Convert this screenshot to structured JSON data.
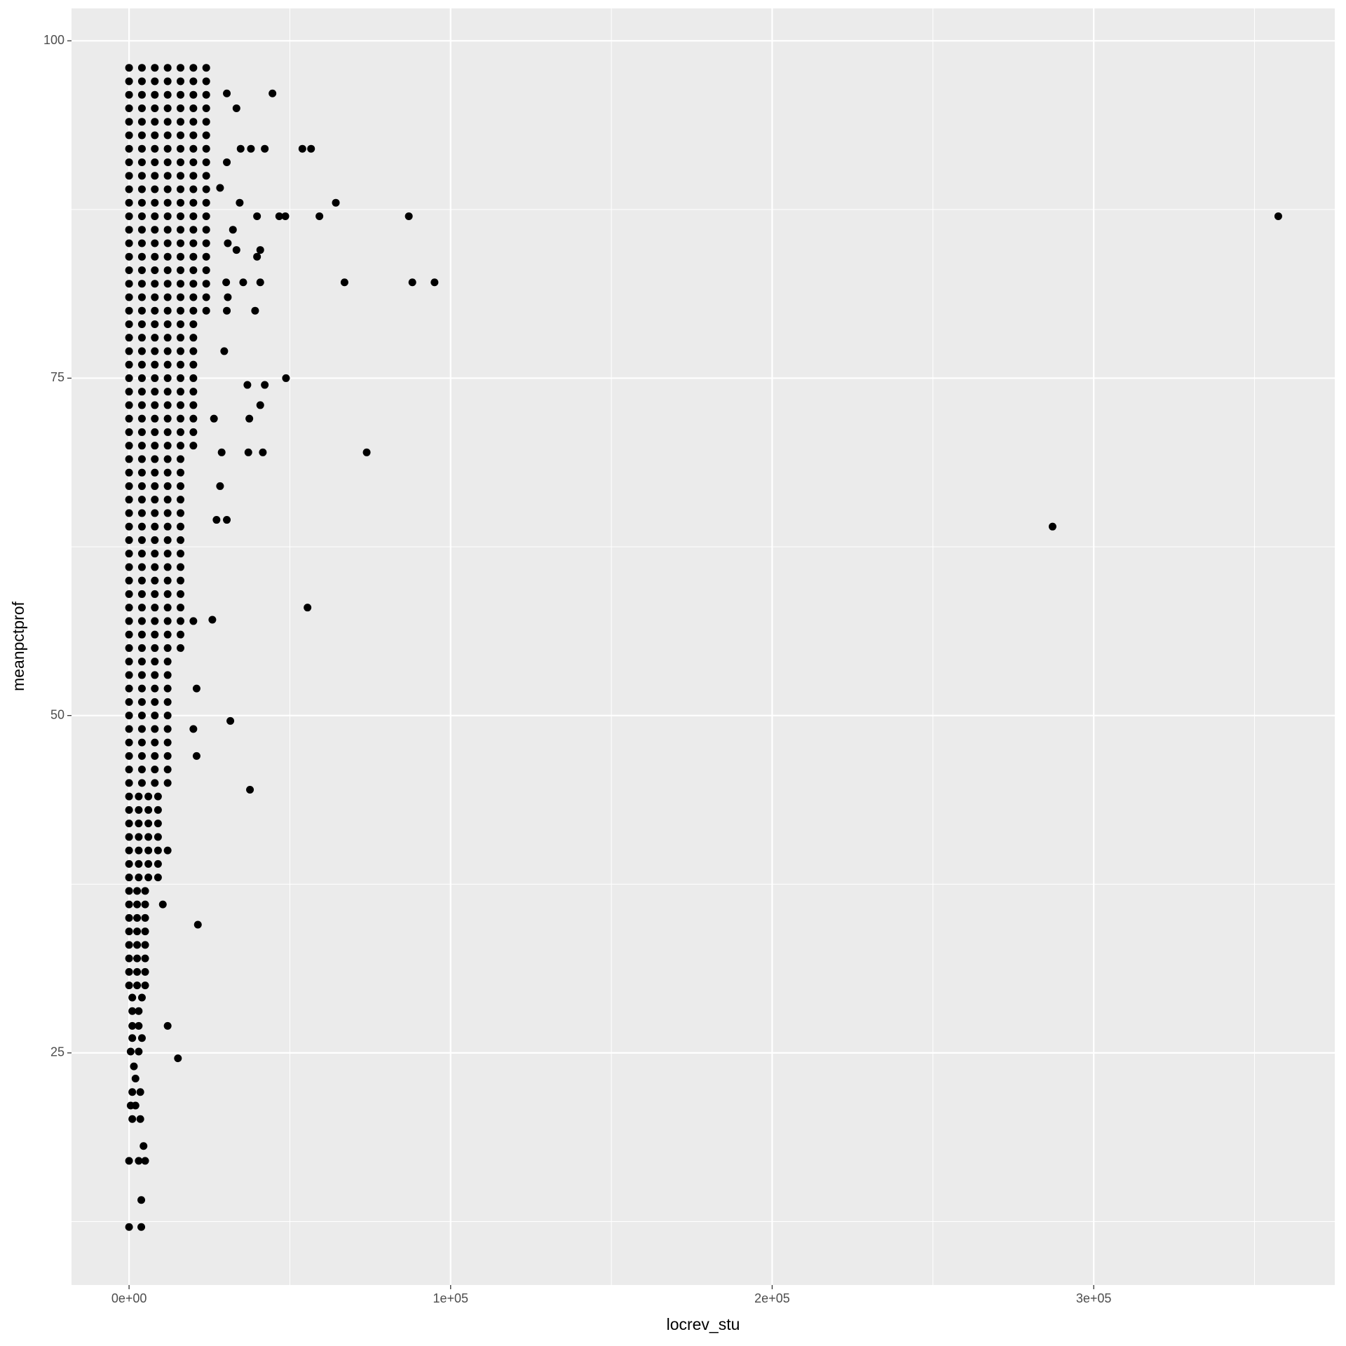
{
  "chart_data": {
    "type": "scatter",
    "x_label": "locrev_stu",
    "y_label": "meanpctprof",
    "xlim": [
      -17900,
      374970
    ],
    "ylim": [
      7.8,
      102.4
    ],
    "xticks": [
      {
        "value": 0,
        "label": "0e+00"
      },
      {
        "value": 100000,
        "label": "1e+05"
      },
      {
        "value": 200000,
        "label": "2e+05"
      },
      {
        "value": 300000,
        "label": "3e+05"
      }
    ],
    "yticks": [
      25,
      50,
      75,
      100
    ],
    "x_minor_grid": [
      50000,
      150000,
      250000,
      350000
    ],
    "y_minor_grid": [
      12.5,
      37.5,
      62.5,
      87.5
    ],
    "grid": true,
    "color": "#000000",
    "x": [
      0,
      4000,
      8000,
      12000,
      16000,
      20000,
      24000,
      0,
      4000,
      8000,
      12000,
      16000,
      20000,
      24000,
      0,
      4000,
      8000,
      12000,
      16000,
      20000,
      24000,
      0,
      4000,
      8000,
      12000,
      16000,
      20000,
      24000,
      0,
      4000,
      8000,
      12000,
      16000,
      20000,
      24000,
      0,
      4000,
      8000,
      12000,
      16000,
      20000,
      24000,
      0,
      4000,
      8000,
      12000,
      16000,
      20000,
      24000,
      0,
      4000,
      8000,
      12000,
      16000,
      20000,
      24000,
      0,
      4000,
      8000,
      12000,
      16000,
      20000,
      24000,
      0,
      4000,
      8000,
      12000,
      16000,
      20000,
      24000,
      0,
      4000,
      8000,
      12000,
      16000,
      20000,
      24000,
      0,
      4000,
      8000,
      12000,
      16000,
      20000,
      24000,
      0,
      4000,
      8000,
      12000,
      16000,
      20000,
      24000,
      0,
      4000,
      8000,
      12000,
      16000,
      20000,
      24000,
      0,
      4000,
      8000,
      12000,
      16000,
      20000,
      24000,
      0,
      4000,
      8000,
      12000,
      16000,
      20000,
      24000,
      0,
      4000,
      8000,
      12000,
      16000,
      20000,
      24000,
      0,
      4000,
      8000,
      12000,
      16000,
      20000,
      24000,
      0,
      4000,
      8000,
      12000,
      16000,
      20000,
      24000,
      0,
      4000,
      8000,
      12000,
      16000,
      20000,
      0,
      4000,
      8000,
      12000,
      16000,
      20000,
      0,
      4000,
      8000,
      12000,
      16000,
      20000,
      0,
      4000,
      8000,
      12000,
      16000,
      20000,
      0,
      4000,
      8000,
      12000,
      16000,
      20000,
      0,
      4000,
      8000,
      12000,
      16000,
      20000,
      0,
      4000,
      8000,
      12000,
      16000,
      20000,
      0,
      4000,
      8000,
      12000,
      16000,
      20000,
      0,
      4000,
      8000,
      12000,
      16000,
      20000,
      0,
      4000,
      8000,
      12000,
      16000,
      20000,
      0,
      4000,
      8000,
      12000,
      16000,
      0,
      4000,
      8000,
      12000,
      16000,
      0,
      4000,
      8000,
      12000,
      16000,
      0,
      4000,
      8000,
      12000,
      16000,
      0,
      4000,
      8000,
      12000,
      16000,
      0,
      4000,
      8000,
      12000,
      16000,
      0,
      4000,
      8000,
      12000,
      16000,
      0,
      4000,
      8000,
      12000,
      16000,
      0,
      4000,
      8000,
      12000,
      16000,
      0,
      4000,
      8000,
      12000,
      16000,
      0,
      4000,
      8000,
      12000,
      16000,
      0,
      4000,
      8000,
      12000,
      16000,
      0,
      4000,
      8000,
      12000,
      16000,
      0,
      4000,
      8000,
      12000,
      16000,
      0,
      4000,
      8000,
      12000,
      16000,
      0,
      4000,
      8000,
      12000,
      0,
      4000,
      8000,
      12000,
      0,
      4000,
      8000,
      12000,
      0,
      4000,
      8000,
      12000,
      0,
      4000,
      8000,
      12000,
      0,
      4000,
      8000,
      12000,
      0,
      4000,
      8000,
      12000,
      0,
      4000,
      8000,
      12000,
      0,
      4000,
      8000,
      12000,
      0,
      4000,
      8000,
      12000,
      0,
      3000,
      6000,
      9000,
      0,
      3000,
      6000,
      9000,
      0,
      3000,
      6000,
      9000,
      0,
      3000,
      6000,
      9000,
      0,
      3000,
      6000,
      9000,
      0,
      3000,
      6000,
      9000,
      0,
      3000,
      6000,
      9000,
      0,
      2500,
      5000,
      0,
      2500,
      5000,
      0,
      2500,
      5000,
      0,
      2500,
      5000,
      0,
      2500,
      5000,
      0,
      2500,
      5000,
      0,
      2500,
      5000,
      0,
      2500,
      5000,
      1000,
      4000,
      1000,
      3000,
      1000,
      3000,
      1000,
      4000,
      500,
      3000,
      1500,
      2000,
      1000,
      3500,
      500,
      2000,
      1000,
      3500,
      4500,
      0,
      3000,
      5000,
      3800,
      0,
      3800,
      44600,
      33400,
      30400,
      34700,
      37900,
      42200,
      53900,
      56600,
      30400,
      28300,
      34400,
      64300,
      39800,
      46700,
      48600,
      59200,
      87000,
      357400,
      32300,
      30700,
      33400,
      40800,
      39800,
      30200,
      35500,
      40800,
      67000,
      88100,
      95000,
      30700,
      30400,
      39200,
      29600,
      48800,
      36800,
      42200,
      40800,
      37400,
      26400,
      28800,
      37100,
      41600,
      73900,
      28300,
      27200,
      30400,
      287200,
      55500,
      25900,
      31500,
      37600,
      21400,
      15200,
      20000,
      21000,
      20000,
      21000,
      12000,
      10500,
      12000
    ],
    "values": [
      98,
      98,
      98,
      98,
      98,
      98,
      98,
      97,
      97,
      97,
      97,
      97,
      97,
      97,
      96,
      96,
      96,
      96,
      96,
      96,
      96,
      95,
      95,
      95,
      95,
      95,
      95,
      95,
      94,
      94,
      94,
      94,
      94,
      94,
      94,
      93,
      93,
      93,
      93,
      93,
      93,
      93,
      92,
      92,
      92,
      92,
      92,
      92,
      92,
      91,
      91,
      91,
      91,
      91,
      91,
      91,
      90,
      90,
      90,
      90,
      90,
      90,
      90,
      89,
      89,
      89,
      89,
      89,
      89,
      89,
      88,
      88,
      88,
      88,
      88,
      88,
      88,
      87,
      87,
      87,
      87,
      87,
      87,
      87,
      86,
      86,
      86,
      86,
      86,
      86,
      86,
      85,
      85,
      85,
      85,
      85,
      85,
      85,
      84,
      84,
      84,
      84,
      84,
      84,
      84,
      83,
      83,
      83,
      83,
      83,
      83,
      83,
      82,
      82,
      82,
      82,
      82,
      82,
      82,
      81,
      81,
      81,
      81,
      81,
      81,
      81,
      80,
      80,
      80,
      80,
      80,
      80,
      80,
      79,
      79,
      79,
      79,
      79,
      79,
      78,
      78,
      78,
      78,
      78,
      78,
      77,
      77,
      77,
      77,
      77,
      77,
      76,
      76,
      76,
      76,
      76,
      76,
      75,
      75,
      75,
      75,
      75,
      75,
      74,
      74,
      74,
      74,
      74,
      74,
      73,
      73,
      73,
      73,
      73,
      73,
      72,
      72,
      72,
      72,
      72,
      72,
      71,
      71,
      71,
      71,
      71,
      71,
      70,
      70,
      70,
      70,
      70,
      70,
      69,
      69,
      69,
      69,
      69,
      68,
      68,
      68,
      68,
      68,
      67,
      67,
      67,
      67,
      67,
      66,
      66,
      66,
      66,
      66,
      65,
      65,
      65,
      65,
      65,
      64,
      64,
      64,
      64,
      64,
      63,
      63,
      63,
      63,
      63,
      62,
      62,
      62,
      62,
      62,
      61,
      61,
      61,
      61,
      61,
      60,
      60,
      60,
      60,
      60,
      59,
      59,
      59,
      59,
      59,
      58,
      58,
      58,
      58,
      58,
      57,
      57,
      57,
      57,
      57,
      56,
      56,
      56,
      56,
      56,
      55,
      55,
      55,
      55,
      55,
      54,
      54,
      54,
      54,
      53,
      53,
      53,
      53,
      52,
      52,
      52,
      52,
      51,
      51,
      51,
      51,
      50,
      50,
      50,
      50,
      49,
      49,
      49,
      49,
      48,
      48,
      48,
      48,
      47,
      47,
      47,
      47,
      46,
      46,
      46,
      46,
      45,
      45,
      45,
      45,
      44,
      44,
      44,
      44,
      43,
      43,
      43,
      43,
      42,
      42,
      42,
      42,
      41,
      41,
      41,
      41,
      40,
      40,
      40,
      40,
      39,
      39,
      39,
      39,
      38,
      38,
      38,
      38,
      37,
      37,
      37,
      36,
      36,
      36,
      35,
      35,
      35,
      34,
      34,
      34,
      33,
      33,
      33,
      32,
      32,
      32,
      31,
      31,
      31,
      30,
      30,
      30,
      29.1,
      29.1,
      28.1,
      28.1,
      27,
      27,
      26.1,
      26.1,
      25.1,
      25.1,
      24,
      23.1,
      22.1,
      22.1,
      21.1,
      21.1,
      20.1,
      20.1,
      18.1,
      17,
      17,
      17,
      14.1,
      12.1,
      12.1,
      96.1,
      95,
      96.1,
      92,
      92,
      92,
      92,
      92,
      91,
      89.1,
      88,
      88,
      87,
      87,
      87,
      87,
      87,
      87,
      86,
      85,
      84.5,
      84.5,
      84,
      82.1,
      82.1,
      82.1,
      82.1,
      82.1,
      82.1,
      81,
      80,
      80,
      77,
      75,
      74.5,
      74.5,
      73,
      72,
      72,
      69.5,
      69.5,
      69.5,
      69.5,
      67,
      64.5,
      64.5,
      64,
      58,
      57.1,
      49.6,
      44.5,
      34.5,
      24.6,
      49,
      47,
      57,
      52,
      40,
      36,
      27
    ]
  }
}
